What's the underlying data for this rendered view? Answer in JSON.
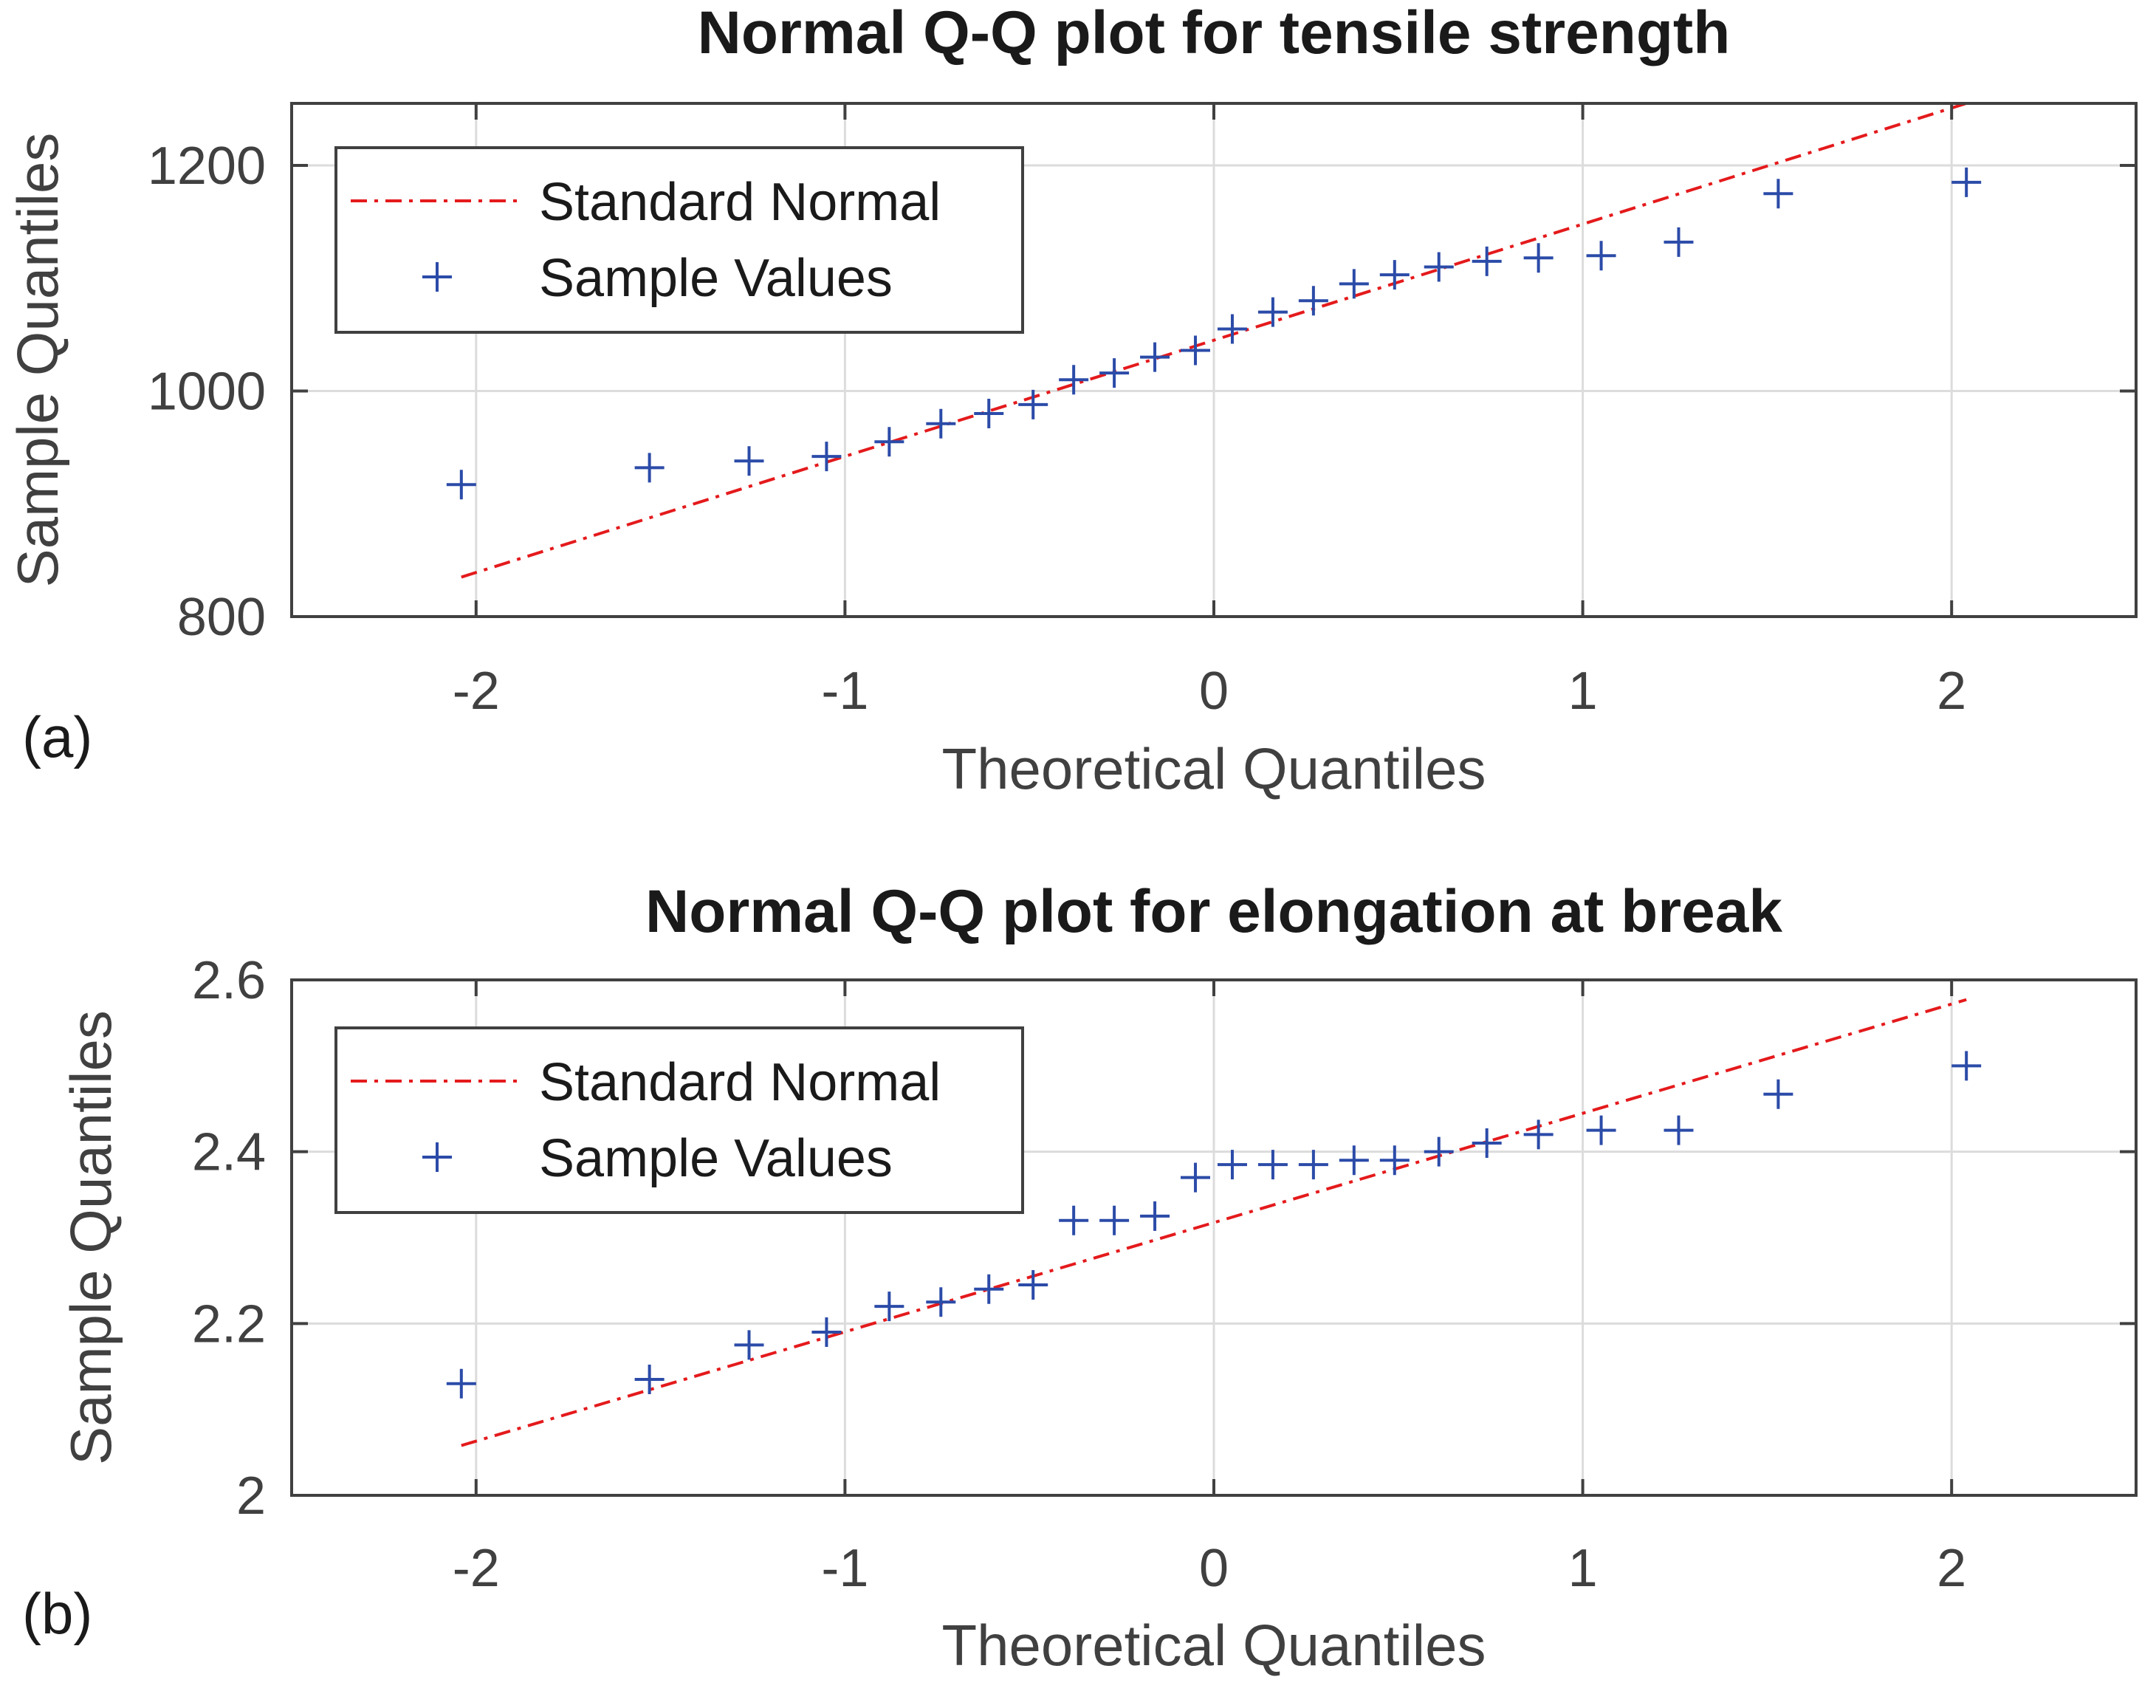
{
  "chart_data": [
    {
      "type": "scatter",
      "panel_label": "(a)",
      "title": "Normal Q-Q plot for tensile strength",
      "xlabel": "Theoretical Quantiles",
      "ylabel": "Sample Quantiles",
      "xlim": [
        -2.5,
        2.5
      ],
      "ylim": [
        800,
        1255
      ],
      "xticks": [
        -2,
        -1,
        0,
        1,
        2
      ],
      "xtick_labels": [
        "-2",
        "-1",
        "0",
        "1",
        "2"
      ],
      "yticks": [
        800,
        1000,
        1200
      ],
      "ytick_labels": [
        "800",
        "1000",
        "1200"
      ],
      "grid": true,
      "legend_position": "top-left",
      "series": [
        {
          "name": "Standard Normal",
          "style": "dash-dot line",
          "color": "#e41a1c",
          "x": [
            -2.04,
            2.04
          ],
          "y": [
            835,
            1255
          ]
        },
        {
          "name": "Sample Values",
          "style": "plus markers",
          "color": "#2b4ba8",
          "x": [
            -2.04,
            -1.53,
            -1.26,
            -1.05,
            -0.88,
            -0.74,
            -0.61,
            -0.49,
            -0.38,
            -0.27,
            -0.16,
            -0.05,
            0.05,
            0.16,
            0.27,
            0.38,
            0.49,
            0.61,
            0.74,
            0.88,
            1.05,
            1.26,
            1.53,
            2.04
          ],
          "y": [
            917,
            932,
            938,
            942,
            955,
            971,
            980,
            988,
            1010,
            1016,
            1030,
            1036,
            1055,
            1070,
            1080,
            1095,
            1103,
            1110,
            1115,
            1118,
            1120,
            1132,
            1175,
            1185
          ]
        }
      ]
    },
    {
      "type": "scatter",
      "panel_label": "(b)",
      "title": "Normal Q-Q plot for elongation at break",
      "xlabel": "Theoretical Quantiles",
      "ylabel": "Sample Quantiles",
      "xlim": [
        -2.5,
        2.5
      ],
      "ylim": [
        2,
        2.6
      ],
      "xticks": [
        -2,
        -1,
        0,
        1,
        2
      ],
      "xtick_labels": [
        "-2",
        "-1",
        "0",
        "1",
        "2"
      ],
      "yticks": [
        2,
        2.2,
        2.4,
        2.6
      ],
      "ytick_labels": [
        "2",
        "2.2",
        "2.4",
        "2.6"
      ],
      "grid": true,
      "legend_position": "top-left",
      "series": [
        {
          "name": "Standard Normal",
          "style": "dash-dot line",
          "color": "#e41a1c",
          "x": [
            -2.04,
            2.04
          ],
          "y": [
            2.058,
            2.577
          ]
        },
        {
          "name": "Sample Values",
          "style": "plus markers",
          "color": "#2b4ba8",
          "x": [
            -2.04,
            -1.53,
            -1.26,
            -1.05,
            -0.88,
            -0.74,
            -0.61,
            -0.49,
            -0.38,
            -0.27,
            -0.16,
            -0.05,
            0.05,
            0.16,
            0.27,
            0.38,
            0.49,
            0.61,
            0.74,
            0.88,
            1.05,
            1.26,
            1.53,
            2.04
          ],
          "y": [
            2.13,
            2.135,
            2.175,
            2.19,
            2.22,
            2.225,
            2.24,
            2.245,
            2.32,
            2.32,
            2.325,
            2.37,
            2.385,
            2.385,
            2.385,
            2.39,
            2.39,
            2.4,
            2.41,
            2.42,
            2.425,
            2.425,
            2.467,
            2.5
          ]
        }
      ]
    }
  ]
}
